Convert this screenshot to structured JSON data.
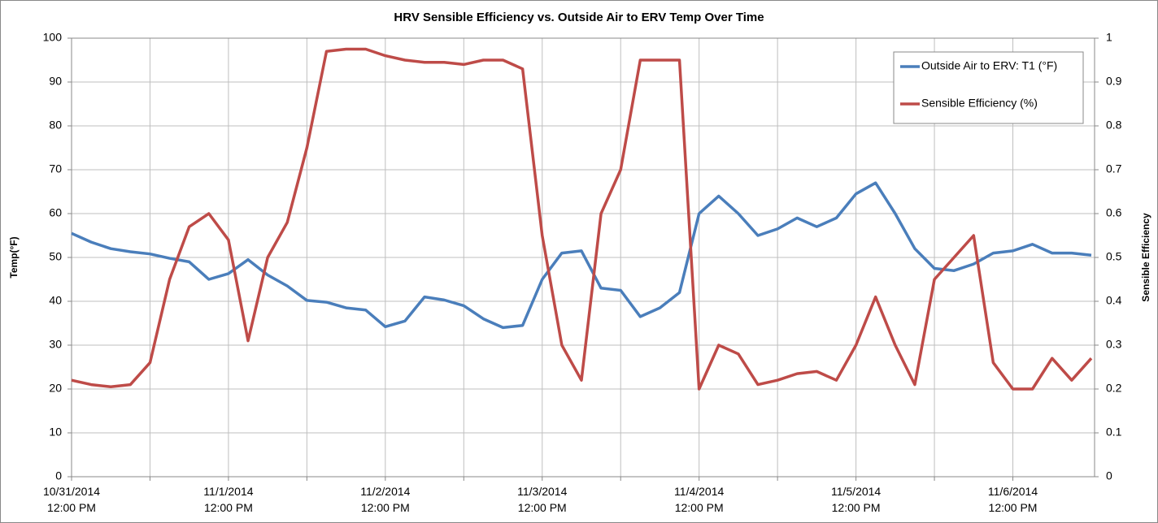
{
  "chart_data": {
    "type": "line",
    "title": "HRV Sensible Efficiency vs. Outside Air to ERV Temp Over Time",
    "ylabel": "Temp(°F)",
    "y2label": "Sensible Efficiency",
    "x": [
      "2014-10-31 12:00",
      "2014-10-31 15:00",
      "2014-10-31 18:00",
      "2014-10-31 21:00",
      "2014-11-01 00:00",
      "2014-11-01 03:00",
      "2014-11-01 06:00",
      "2014-11-01 09:00",
      "2014-11-01 12:00",
      "2014-11-01 15:00",
      "2014-11-01 18:00",
      "2014-11-01 21:00",
      "2014-11-02 00:00",
      "2014-11-02 03:00",
      "2014-11-02 06:00",
      "2014-11-02 09:00",
      "2014-11-02 12:00",
      "2014-11-02 15:00",
      "2014-11-02 18:00",
      "2014-11-02 21:00",
      "2014-11-03 00:00",
      "2014-11-03 03:00",
      "2014-11-03 06:00",
      "2014-11-03 09:00",
      "2014-11-03 12:00",
      "2014-11-03 15:00",
      "2014-11-03 18:00",
      "2014-11-03 21:00",
      "2014-11-04 00:00",
      "2014-11-04 03:00",
      "2014-11-04 06:00",
      "2014-11-04 09:00",
      "2014-11-04 12:00",
      "2014-11-04 15:00",
      "2014-11-04 18:00",
      "2014-11-04 21:00",
      "2014-11-05 00:00",
      "2014-11-05 03:00",
      "2014-11-05 06:00",
      "2014-11-05 09:00",
      "2014-11-05 12:00",
      "2014-11-05 15:00",
      "2014-11-05 18:00",
      "2014-11-05 21:00",
      "2014-11-06 00:00",
      "2014-11-06 03:00",
      "2014-11-06 06:00",
      "2014-11-06 09:00",
      "2014-11-06 12:00",
      "2014-11-06 15:00",
      "2014-11-06 18:00",
      "2014-11-06 21:00",
      "2014-11-07 00:00"
    ],
    "series": [
      {
        "name": "Outside Air to ERV: T1 (°F)",
        "color": "#4a7ebb",
        "values": [
          55.5,
          53.5,
          52,
          51.3,
          50.8,
          49.8,
          49,
          45,
          46.3,
          49.5,
          46,
          43.5,
          40.2,
          39.8,
          38.5,
          38,
          34.2,
          35.5,
          41,
          40.3,
          39,
          36,
          34,
          34.5,
          45,
          51,
          51.5,
          43,
          42.5,
          36.5,
          38.5,
          42,
          60,
          64,
          60,
          55,
          56.5,
          59,
          57,
          59,
          64.5,
          67,
          60,
          52,
          47.5,
          47,
          48.5,
          51,
          51.5,
          53,
          51,
          51,
          50.5
        ]
      },
      {
        "name": "Sensible Efficiency (%)",
        "color": "#be4b48",
        "axis": "y2",
        "values": [
          0.22,
          0.21,
          0.205,
          0.21,
          0.26,
          0.45,
          0.57,
          0.6,
          0.54,
          0.31,
          0.5,
          0.58,
          0.75,
          0.97,
          0.975,
          0.975,
          0.96,
          0.95,
          0.945,
          0.945,
          0.94,
          0.95,
          0.95,
          0.93,
          0.55,
          0.3,
          0.22,
          0.6,
          0.7,
          0.95,
          0.95,
          0.95,
          0.2,
          0.3,
          0.28,
          0.21,
          0.22,
          0.235,
          0.24,
          0.22,
          0.3,
          0.41,
          0.3,
          0.21,
          0.45,
          0.5,
          0.55,
          0.26,
          0.2,
          0.2,
          0.27,
          0.22,
          0.27
        ]
      }
    ],
    "xlim": [
      "2014-10-31 12:00",
      "2014-11-07 00:30"
    ],
    "xticks": [
      {
        "value": "2014-10-31 12:00",
        "label": "10/31/2014\n12:00 PM"
      },
      {
        "value": "2014-11-01 12:00",
        "label": "11/1/2014\n12:00 PM"
      },
      {
        "value": "2014-11-02 12:00",
        "label": "11/2/2014\n12:00 PM"
      },
      {
        "value": "2014-11-03 12:00",
        "label": "11/3/2014\n12:00 PM"
      },
      {
        "value": "2014-11-04 12:00",
        "label": "11/4/2014\n12:00 PM"
      },
      {
        "value": "2014-11-05 12:00",
        "label": "11/5/2014\n12:00 PM"
      },
      {
        "value": "2014-11-06 12:00",
        "label": "11/6/2014\n12:00 PM"
      }
    ],
    "x_minor_ticks": [
      "2014-11-01 00:00",
      "2014-11-02 00:00",
      "2014-11-03 00:00",
      "2014-11-04 00:00",
      "2014-11-05 00:00",
      "2014-11-06 00:00"
    ],
    "ylim": [
      0,
      100
    ],
    "yticks": [
      0,
      10,
      20,
      30,
      40,
      50,
      60,
      70,
      80,
      90,
      100
    ],
    "y2lim": [
      0,
      1
    ],
    "y2ticks": [
      0,
      0.1,
      0.2,
      0.3,
      0.4,
      0.5,
      0.6,
      0.7,
      0.8,
      0.9,
      1
    ],
    "grid": true,
    "legend": "upper right"
  }
}
